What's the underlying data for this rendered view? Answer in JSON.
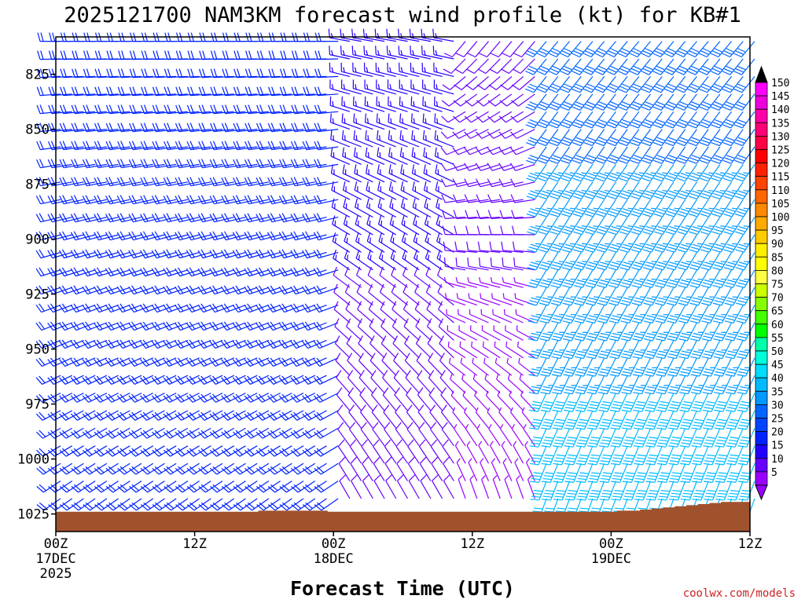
{
  "chart_data": {
    "type": "wind-barb-time-height",
    "title": "2025121700 NAM3KM forecast wind profile (kt) for KB#1",
    "xlabel": "Forecast Time (UTC)",
    "ylabel": "",
    "credit": "coolwx.com/models",
    "x_range_hours": [
      0,
      60
    ],
    "y_range_hpa": [
      808,
      1033
    ],
    "y_ticks": [
      "825",
      "850",
      "875",
      "900",
      "925",
      "950",
      "975",
      "1000",
      "1025"
    ],
    "y_tick_values": [
      825,
      850,
      875,
      900,
      925,
      950,
      975,
      1000,
      1025
    ],
    "x_ticks": [
      {
        "hour": 0,
        "l1": "00Z",
        "l2": "17DEC",
        "l3": "2025"
      },
      {
        "hour": 12,
        "l1": "12Z",
        "l2": "",
        "l3": ""
      },
      {
        "hour": 24,
        "l1": "00Z",
        "l2": "18DEC",
        "l3": ""
      },
      {
        "hour": 36,
        "l1": "12Z",
        "l2": "",
        "l3": ""
      },
      {
        "hour": 48,
        "l1": "00Z",
        "l2": "19DEC",
        "l3": ""
      },
      {
        "hour": 60,
        "l1": "12Z",
        "l2": "",
        "l3": ""
      }
    ],
    "colorbar": {
      "labels": [
        "150",
        "145",
        "140",
        "135",
        "130",
        "125",
        "120",
        "115",
        "110",
        "105",
        "100",
        "95",
        "90",
        "85",
        "80",
        "75",
        "70",
        "65",
        "60",
        "55",
        "50",
        "45",
        "40",
        "35",
        "30",
        "25",
        "20",
        "15",
        "10",
        "5"
      ],
      "colors": [
        "#ff00ff",
        "#ee00dd",
        "#ff00aa",
        "#ff0077",
        "#ff0044",
        "#ff0000",
        "#ff2200",
        "#ff4400",
        "#ff6600",
        "#ff8800",
        "#ffaa00",
        "#ffcc00",
        "#ffee00",
        "#ffff00",
        "#ffff44",
        "#ccff00",
        "#88ff00",
        "#44ff00",
        "#00ff00",
        "#00ffaa",
        "#00ffdd",
        "#00ddff",
        "#00bbff",
        "#0099ff",
        "#0066ff",
        "#0044ff",
        "#0022ff",
        "#2200ff",
        "#6600ff",
        "#9900ff"
      ]
    },
    "ground_pressure_hpa": [
      1024,
      1024,
      1024,
      1024,
      1024,
      1024,
      1024,
      1024,
      1024,
      1024,
      1024,
      1024,
      1024,
      1024,
      1024,
      1024,
      1024,
      1024,
      1023.5,
      1023.5,
      1023.5,
      1023.5,
      1023.5,
      1023.5,
      1024,
      1024,
      1024,
      1024,
      1024,
      1024,
      1024,
      1024,
      1024,
      1024,
      1024,
      1024,
      1024,
      1024,
      1024,
      1024,
      1024,
      1024,
      1024,
      1024,
      1024,
      1024,
      1024,
      1024,
      1024,
      1023.5,
      1023.5,
      1023,
      1022.5,
      1022,
      1021.5,
      1021,
      1020.5,
      1020,
      1019.5,
      1019.5,
      1019.5
    ],
    "wind_columns": [
      {
        "hours": [
          0,
          1,
          2,
          3,
          4,
          5,
          6,
          7,
          8,
          9,
          10,
          11,
          12,
          13,
          14,
          15,
          16,
          17,
          18,
          19,
          20,
          21,
          22,
          23,
          24
        ],
        "dir_top": 270,
        "dir_bottom": 235,
        "spd_top": 20,
        "spd_bottom": 20
      },
      {
        "hours": [
          25,
          26,
          27,
          28,
          29,
          30,
          31,
          32,
          33,
          34
        ],
        "dir_top": 280,
        "dir_bottom": 330,
        "spd_top": 15,
        "spd_bottom": 10
      },
      {
        "hours": [
          35,
          36,
          37,
          38,
          39,
          40,
          41
        ],
        "dir_top": 220,
        "dir_bottom": 340,
        "spd_top": 10,
        "spd_bottom": 5
      },
      {
        "hours": [
          42,
          43,
          44,
          45,
          46,
          47,
          48,
          49,
          50,
          51,
          52,
          53,
          54,
          55,
          56,
          57,
          58,
          59,
          60
        ],
        "dir_top": 220,
        "dir_bottom": 200,
        "spd_top": 30,
        "spd_bottom": 40
      }
    ]
  }
}
